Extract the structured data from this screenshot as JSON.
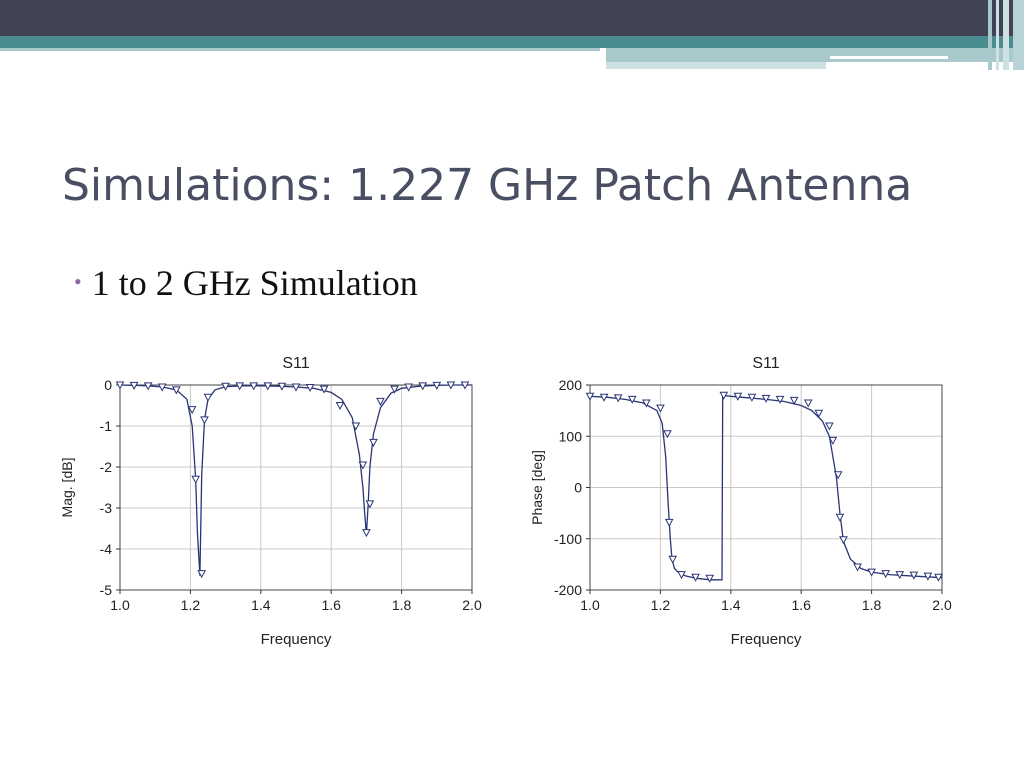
{
  "slide": {
    "title": "Simulations: 1.227 GHz Patch Antenna",
    "bullet": "1 to 2 GHz Simulation"
  },
  "colors": {
    "title": "#4a4e62",
    "bullet": "#8e6aa6",
    "header_dark": "#414254",
    "header_teal": "#4a8d90",
    "header_light": "#a8c8cc",
    "trace": "#2a3576",
    "grid": "#c8c8c8"
  },
  "chart_data": [
    {
      "type": "line",
      "title": "S11",
      "xlabel": "Frequency",
      "ylabel": "Mag. [dB]",
      "xlim": [
        1.0,
        2.0
      ],
      "ylim": [
        -5,
        0
      ],
      "xticks": [
        "1.0",
        "1.2",
        "1.4",
        "1.6",
        "1.8",
        "2.0"
      ],
      "yticks": [
        "0",
        "-1",
        "-2",
        "-3",
        "-4",
        "-5"
      ],
      "grid": true,
      "marker": "triangle-down",
      "series": [
        {
          "x": [
            1.0,
            1.04,
            1.08,
            1.12,
            1.16,
            1.19,
            1.205,
            1.215,
            1.22,
            1.227,
            1.232,
            1.24,
            1.25,
            1.27,
            1.3,
            1.35,
            1.4,
            1.45,
            1.5,
            1.55,
            1.6,
            1.63,
            1.66,
            1.68,
            1.69,
            1.695,
            1.7,
            1.705,
            1.71,
            1.72,
            1.74,
            1.77,
            1.8,
            1.85,
            1.9,
            1.95,
            2.0
          ],
          "y": [
            0,
            -0.01,
            -0.02,
            -0.05,
            -0.12,
            -0.35,
            -1.0,
            -2.3,
            -3.6,
            -4.65,
            -2.2,
            -0.85,
            -0.35,
            -0.12,
            -0.04,
            -0.02,
            -0.02,
            -0.03,
            -0.05,
            -0.08,
            -0.18,
            -0.35,
            -0.8,
            -1.7,
            -2.5,
            -3.1,
            -3.65,
            -2.9,
            -2.0,
            -1.2,
            -0.55,
            -0.2,
            -0.08,
            -0.03,
            -0.01,
            0,
            0
          ]
        }
      ],
      "markers": {
        "x": [
          1.0,
          1.04,
          1.08,
          1.12,
          1.16,
          1.205,
          1.215,
          1.232,
          1.24,
          1.25,
          1.3,
          1.34,
          1.38,
          1.42,
          1.46,
          1.5,
          1.54,
          1.58,
          1.625,
          1.67,
          1.69,
          1.7,
          1.71,
          1.72,
          1.74,
          1.78,
          1.82,
          1.86,
          1.9,
          1.94,
          1.98
        ],
        "y": [
          0,
          -0.01,
          -0.02,
          -0.05,
          -0.12,
          -0.6,
          -2.3,
          -4.6,
          -0.85,
          -0.3,
          -0.03,
          -0.02,
          -0.02,
          -0.02,
          -0.03,
          -0.05,
          -0.06,
          -0.1,
          -0.5,
          -1.0,
          -1.95,
          -3.6,
          -2.9,
          -1.4,
          -0.4,
          -0.1,
          -0.05,
          -0.02,
          -0.01,
          0,
          0
        ]
      }
    },
    {
      "type": "line",
      "title": "S11",
      "xlabel": "Frequency",
      "ylabel": "Phase [deg]",
      "xlim": [
        1.0,
        2.0
      ],
      "ylim": [
        -200,
        200
      ],
      "xticks": [
        "1.0",
        "1.2",
        "1.4",
        "1.6",
        "1.8",
        "2.0"
      ],
      "yticks": [
        "200",
        "100",
        "0",
        "-100",
        "-200"
      ],
      "grid": true,
      "marker": "triangle-down",
      "series": [
        {
          "x": [
            1.0,
            1.05,
            1.1,
            1.15,
            1.19,
            1.205,
            1.215,
            1.222,
            1.228,
            1.233,
            1.24,
            1.25,
            1.27,
            1.3,
            1.34,
            1.375,
            1.377,
            1.4,
            1.45,
            1.5,
            1.55,
            1.6,
            1.63,
            1.66,
            1.68,
            1.69,
            1.7,
            1.71,
            1.72,
            1.74,
            1.77,
            1.8,
            1.85,
            1.9,
            1.95,
            2.0
          ],
          "y": [
            178,
            176,
            172,
            165,
            150,
            125,
            60,
            -30,
            -100,
            -140,
            -158,
            -165,
            -172,
            -177,
            -180,
            -180,
            180,
            178,
            175,
            172,
            168,
            160,
            150,
            130,
            100,
            60,
            20,
            -50,
            -105,
            -140,
            -158,
            -165,
            -170,
            -172,
            -174,
            -176
          ]
        }
      ],
      "markers": {
        "x": [
          1.0,
          1.04,
          1.08,
          1.12,
          1.16,
          1.2,
          1.22,
          1.225,
          1.235,
          1.26,
          1.3,
          1.34,
          1.38,
          1.42,
          1.46,
          1.5,
          1.54,
          1.58,
          1.62,
          1.65,
          1.68,
          1.69,
          1.705,
          1.71,
          1.72,
          1.76,
          1.8,
          1.84,
          1.88,
          1.92,
          1.96,
          1.99
        ],
        "y": [
          178,
          176,
          175,
          172,
          165,
          155,
          105,
          -68,
          -140,
          -170,
          -175,
          -177,
          180,
          178,
          176,
          174,
          172,
          170,
          165,
          145,
          120,
          92,
          25,
          -58,
          -102,
          -155,
          -165,
          -168,
          -170,
          -171,
          -173,
          -175
        ]
      }
    }
  ]
}
